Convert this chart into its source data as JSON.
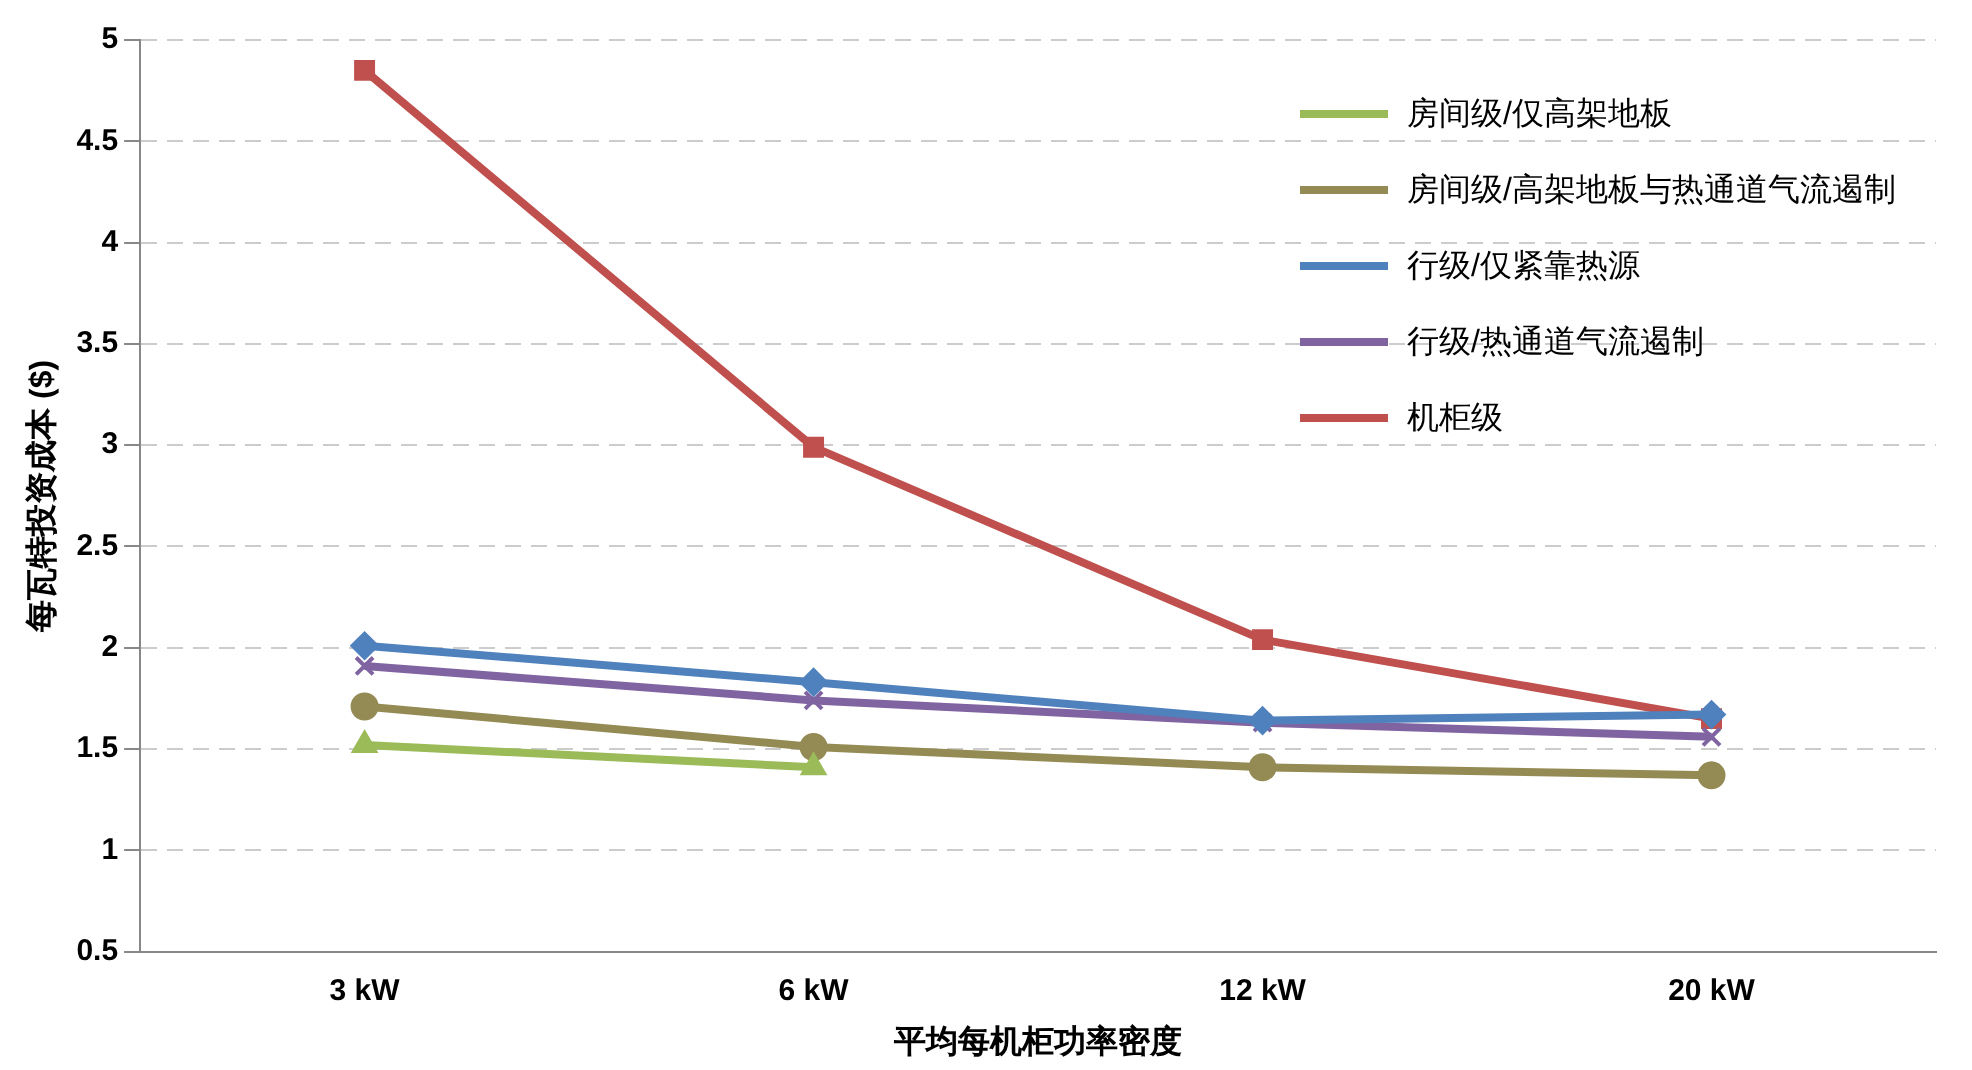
{
  "chart_data": {
    "type": "line",
    "xlabel": "平均每机柜功率密度",
    "ylabel": "每瓦特投资成本 ($)",
    "categories": [
      "3 kW",
      "6 kW",
      "12 kW",
      "20 kW"
    ],
    "series": [
      {
        "name": "房间级/仅高架地板",
        "color": "#9bbb59",
        "marker": "triangle",
        "values": [
          1.52,
          1.41,
          null,
          null
        ]
      },
      {
        "name": "房间级/高架地板与热通道气流遏制",
        "color": "#948a54",
        "marker": "circle",
        "values": [
          1.71,
          1.51,
          1.41,
          1.37
        ]
      },
      {
        "name": "行级/仅紧靠热源",
        "color": "#4f81bd",
        "marker": "diamond",
        "values": [
          2.01,
          1.83,
          1.64,
          1.67
        ]
      },
      {
        "name": "行级/热通道气流遏制",
        "color": "#8064a2",
        "marker": "cross",
        "values": [
          1.91,
          1.74,
          1.63,
          1.56
        ]
      },
      {
        "name": "机柜级",
        "color": "#c0504d",
        "marker": "square",
        "values": [
          4.85,
          2.99,
          2.04,
          1.65
        ]
      }
    ],
    "ylim": [
      0.5,
      5
    ],
    "yticks": [
      0.5,
      1,
      1.5,
      2,
      2.5,
      3,
      3.5,
      4,
      4.5,
      5
    ],
    "grid": "y",
    "legend": "top right",
    "line_style": "solid"
  }
}
